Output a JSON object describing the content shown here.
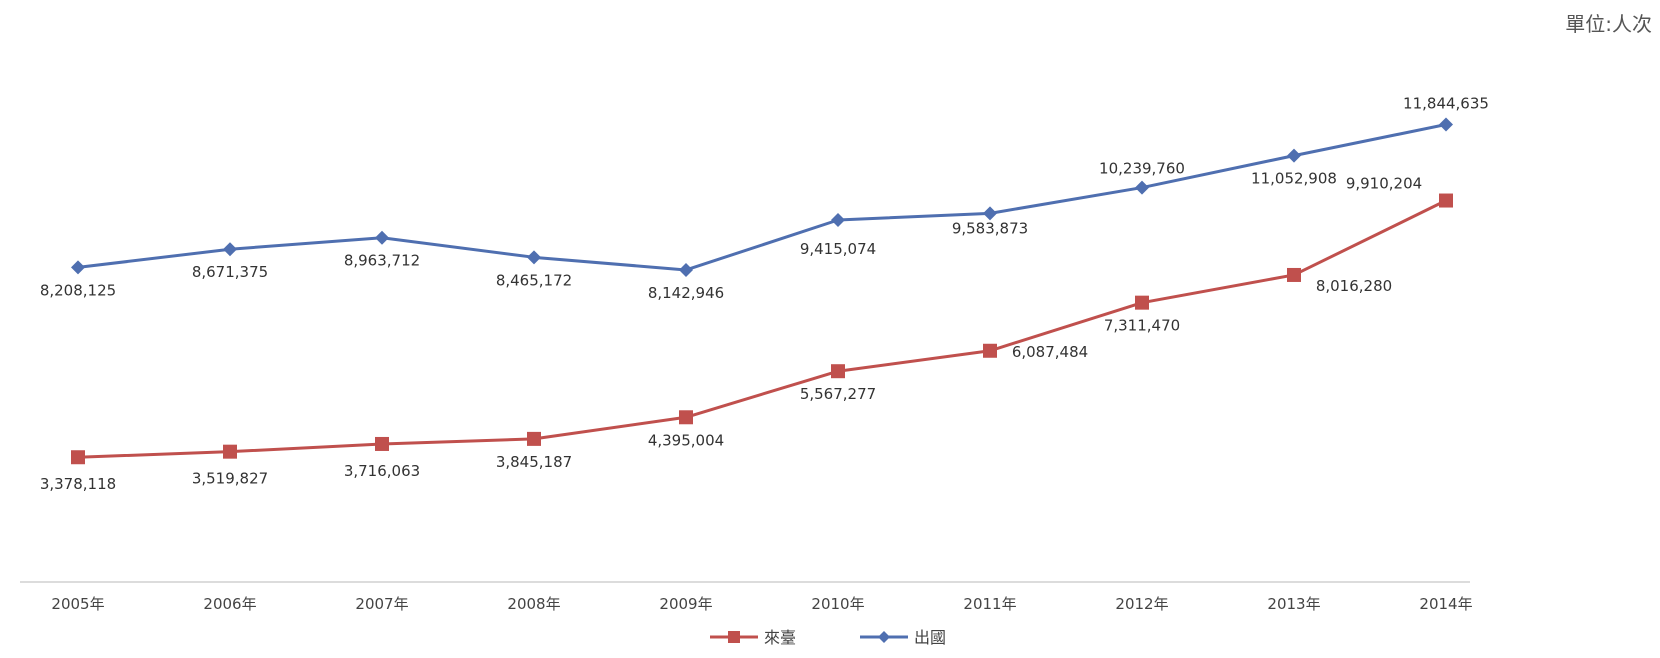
{
  "unit_label": "單位:人次",
  "chart_data": {
    "type": "line",
    "categories": [
      "2005年",
      "2006年",
      "2007年",
      "2008年",
      "2009年",
      "2010年",
      "2011年",
      "2012年",
      "2013年",
      "2014年"
    ],
    "series": [
      {
        "name": "出國",
        "color": "#4f6fb0",
        "marker": "diamond",
        "values": [
          8208125,
          8671375,
          8963712,
          8465172,
          8142946,
          9415074,
          9583873,
          10239760,
          11052908,
          11844635
        ],
        "labels": [
          "8,208,125",
          "8,671,375",
          "8,963,712",
          "8,465,172",
          "8,142,946",
          "9,415,074",
          "9,583,873",
          "10,239,760",
          "11,052,908",
          "11,844,635"
        ]
      },
      {
        "name": "來臺",
        "color": "#c0504d",
        "marker": "square",
        "values": [
          3378118,
          3519827,
          3716063,
          3845187,
          4395004,
          5567277,
          6087484,
          7311470,
          8016280,
          9910204
        ],
        "labels": [
          "3,378,118",
          "3,519,827",
          "3,716,063",
          "3,845,187",
          "4,395,004",
          "5,567,277",
          "6,087,484",
          "7,311,470",
          "8,016,280",
          "9,910,204"
        ]
      }
    ],
    "legend_position": "bottom",
    "grid": false
  }
}
